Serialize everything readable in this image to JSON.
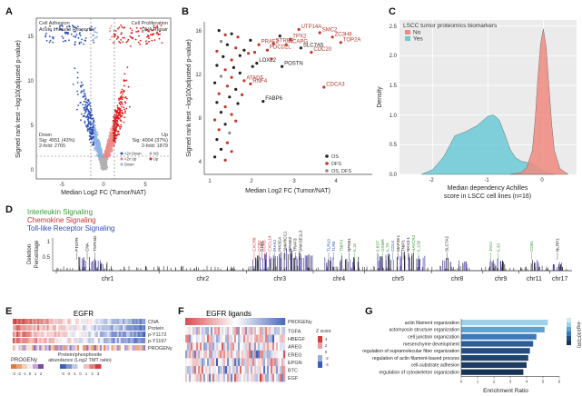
{
  "panels": {
    "a": "A",
    "b": "B",
    "c": "C",
    "d": "D",
    "e": "E",
    "f": "F",
    "g": "G"
  },
  "chart_data": [
    {
      "id": "A",
      "type": "scatter",
      "xlabel": "Median Log2 FC (Tumor/NAT)",
      "ylabel": "Signed rank test −log10(adjusted p-value)",
      "xlim": [
        -7,
        7
      ],
      "ylim": [
        -1,
        17
      ],
      "xticks": [
        "-5",
        "0",
        "5"
      ],
      "yticks": [
        "0",
        "5",
        "10",
        "15"
      ],
      "corner_left": [
        "Cell Adhesion",
        "Acute Immune Response"
      ],
      "corner_right": [
        "Cell Proliferation",
        "DNA Repair"
      ],
      "stats_down": [
        "Down",
        "Sig: 4551 (43%)",
        "2-fold: 2765"
      ],
      "stats_up": [
        "Up",
        "Sig: 4004 (37%)",
        "2-fold: 1879"
      ],
      "legend": [
        {
          "label": ">2x Down",
          "color": "#2b4fb8"
        },
        {
          "label": "<2x Up",
          "color": "#e87a7a"
        },
        {
          "label": "Down",
          "color": "#8fb3e3"
        },
        {
          "label": "NS",
          "color": "#aaaaaa"
        },
        {
          "label": "Up",
          "color": "#e02020"
        }
      ],
      "colors": {
        "down2x": "#2b4fb8",
        "down": "#8fb3e3",
        "up": "#f08a8a",
        "up2x": "#e01a1a",
        "ns": "#b0b0b0"
      }
    },
    {
      "id": "B",
      "type": "scatter",
      "xlabel": "Median Log2 FC (Tumor/NAT)",
      "ylabel": "Signed rank test −log10(adjusted p-value)",
      "xlim": [
        0.8,
        4.8
      ],
      "ylim": [
        3,
        17
      ],
      "xticks": [
        "1",
        "2",
        "3",
        "4"
      ],
      "yticks": [
        "4",
        "8",
        "12",
        "16"
      ],
      "legend": [
        {
          "label": "OS",
          "color": "#222222"
        },
        {
          "label": "DFS",
          "color": "#c0392b"
        },
        {
          "label": "OS, DFS",
          "color": "#888888"
        }
      ],
      "points": [
        {
          "x": 3.05,
          "y": 16.3,
          "label": "UTP14A",
          "group": "DFS"
        },
        {
          "x": 3.55,
          "y": 16.0,
          "label": "SMC2",
          "group": "DFS"
        },
        {
          "x": 3.85,
          "y": 15.6,
          "label": "ZC3H8",
          "group": "DFS"
        },
        {
          "x": 4.05,
          "y": 15.1,
          "label": "TOP2A",
          "group": "DFS"
        },
        {
          "x": 2.85,
          "y": 15.4,
          "label": "TPX2",
          "group": "DFS"
        },
        {
          "x": 2.75,
          "y": 14.9,
          "label": "NCAPG",
          "group": "DFS"
        },
        {
          "x": 3.1,
          "y": 14.6,
          "label": "SLC7A5",
          "group": "OS"
        },
        {
          "x": 2.45,
          "y": 15.0,
          "label": "STRBP",
          "group": "DFS"
        },
        {
          "x": 2.1,
          "y": 14.9,
          "label": "PRAF2",
          "group": "DFS"
        },
        {
          "x": 2.3,
          "y": 14.4,
          "label": "PDCD2L",
          "group": "DFS"
        },
        {
          "x": 3.35,
          "y": 14.2,
          "label": "CDC20",
          "group": "DFS"
        },
        {
          "x": 2.05,
          "y": 13.2,
          "label": "LOXL2",
          "group": "OS"
        },
        {
          "x": 2.65,
          "y": 12.9,
          "label": "POSTN",
          "group": "OS"
        },
        {
          "x": 1.75,
          "y": 11.6,
          "label": "ATAD5",
          "group": "DFS"
        },
        {
          "x": 1.9,
          "y": 11.3,
          "label": "RNF4",
          "group": "DFS"
        },
        {
          "x": 3.65,
          "y": 11.0,
          "label": "CDCA3",
          "group": "DFS"
        },
        {
          "x": 2.2,
          "y": 9.7,
          "label": "FABP6",
          "group": "OS"
        },
        {
          "x": 1.15,
          "y": 16.2,
          "label": "",
          "group": "OS"
        },
        {
          "x": 1.3,
          "y": 15.8,
          "label": "",
          "group": "DFS"
        },
        {
          "x": 1.45,
          "y": 15.9,
          "label": "",
          "group": "OS"
        },
        {
          "x": 1.6,
          "y": 15.6,
          "label": "",
          "group": "DFS"
        },
        {
          "x": 1.2,
          "y": 15.2,
          "label": "",
          "group": "OSDFS"
        },
        {
          "x": 1.35,
          "y": 14.9,
          "label": "",
          "group": "OS"
        },
        {
          "x": 1.55,
          "y": 14.6,
          "label": "",
          "group": "DFS"
        },
        {
          "x": 1.75,
          "y": 14.4,
          "label": "",
          "group": "OS"
        },
        {
          "x": 1.1,
          "y": 14.3,
          "label": "",
          "group": "DFS"
        },
        {
          "x": 1.25,
          "y": 13.8,
          "label": "",
          "group": "OS"
        },
        {
          "x": 1.45,
          "y": 13.5,
          "label": "",
          "group": "DFS"
        },
        {
          "x": 1.65,
          "y": 13.9,
          "label": "",
          "group": "OS"
        },
        {
          "x": 1.85,
          "y": 14.1,
          "label": "",
          "group": "DFS"
        },
        {
          "x": 1.1,
          "y": 13.0,
          "label": "",
          "group": "OS"
        },
        {
          "x": 1.3,
          "y": 12.6,
          "label": "",
          "group": "DFS"
        },
        {
          "x": 1.5,
          "y": 12.8,
          "label": "",
          "group": "OS"
        },
        {
          "x": 1.2,
          "y": 12.0,
          "label": "",
          "group": "OSDFS"
        },
        {
          "x": 1.45,
          "y": 11.9,
          "label": "",
          "group": "DFS"
        },
        {
          "x": 1.65,
          "y": 12.3,
          "label": "",
          "group": "OS"
        },
        {
          "x": 1.05,
          "y": 11.4,
          "label": "",
          "group": "OS"
        },
        {
          "x": 1.35,
          "y": 11.1,
          "label": "",
          "group": "DFS"
        },
        {
          "x": 1.55,
          "y": 10.8,
          "label": "",
          "group": "OS"
        },
        {
          "x": 1.15,
          "y": 10.4,
          "label": "",
          "group": "DFS"
        },
        {
          "x": 1.4,
          "y": 10.1,
          "label": "",
          "group": "OS"
        },
        {
          "x": 1.7,
          "y": 10.3,
          "label": "",
          "group": "DFS"
        },
        {
          "x": 1.1,
          "y": 9.6,
          "label": "",
          "group": "OS"
        },
        {
          "x": 1.3,
          "y": 9.2,
          "label": "",
          "group": "DFS"
        },
        {
          "x": 1.6,
          "y": 9.5,
          "label": "",
          "group": "OS"
        },
        {
          "x": 1.2,
          "y": 8.7,
          "label": "",
          "group": "OS"
        },
        {
          "x": 1.45,
          "y": 8.5,
          "label": "",
          "group": "DFS"
        },
        {
          "x": 1.05,
          "y": 8.0,
          "label": "",
          "group": "DFS"
        },
        {
          "x": 1.3,
          "y": 7.6,
          "label": "",
          "group": "OS"
        },
        {
          "x": 1.55,
          "y": 7.9,
          "label": "",
          "group": "DFS"
        },
        {
          "x": 1.15,
          "y": 7.1,
          "label": "",
          "group": "DFS"
        },
        {
          "x": 1.4,
          "y": 6.8,
          "label": "",
          "group": "OSDFS"
        },
        {
          "x": 1.1,
          "y": 6.2,
          "label": "",
          "group": "OS"
        },
        {
          "x": 1.35,
          "y": 5.9,
          "label": "",
          "group": "DFS"
        },
        {
          "x": 1.2,
          "y": 5.3,
          "label": "",
          "group": "OS"
        },
        {
          "x": 1.45,
          "y": 5.1,
          "label": "",
          "group": "DFS"
        },
        {
          "x": 1.05,
          "y": 4.6,
          "label": "",
          "group": "OS"
        },
        {
          "x": 1.3,
          "y": 4.3,
          "label": "",
          "group": "DFS"
        },
        {
          "x": 1.9,
          "y": 15.3,
          "label": "",
          "group": "OS"
        },
        {
          "x": 2.0,
          "y": 14.2,
          "label": "",
          "group": "DFS"
        },
        {
          "x": 1.95,
          "y": 12.9,
          "label": "",
          "group": "OS"
        },
        {
          "x": 2.4,
          "y": 13.6,
          "label": "",
          "group": "DFS"
        },
        {
          "x": 2.6,
          "y": 15.7,
          "label": "",
          "group": "OS"
        }
      ]
    },
    {
      "id": "C",
      "type": "area",
      "title": "LSCC tumor proteomics biomarkers",
      "xlabel": "Median dependency Achilles score in LSCC cell lines (n=16)",
      "ylabel": "Density",
      "xlim": [
        -2.6,
        0.6
      ],
      "ylim": [
        0,
        2.6
      ],
      "xticks": [
        "-2",
        "-1",
        "0"
      ],
      "yticks": [
        "0.0",
        "0.5",
        "1.0",
        "1.5",
        "2.0",
        "2.5"
      ],
      "series": [
        {
          "name": "No",
          "color": "#f08a80",
          "x": [
            -0.6,
            -0.4,
            -0.3,
            -0.2,
            -0.15,
            -0.1,
            -0.05,
            0.0,
            0.05,
            0.1,
            0.15,
            0.2,
            0.3,
            0.45
          ],
          "y": [
            0.0,
            0.03,
            0.12,
            0.4,
            0.9,
            1.6,
            2.2,
            2.45,
            2.15,
            1.5,
            0.85,
            0.4,
            0.1,
            0.0
          ]
        },
        {
          "name": "Yes",
          "color": "#6ccad8",
          "x": [
            -2.2,
            -2.0,
            -1.8,
            -1.6,
            -1.4,
            -1.2,
            -1.0,
            -0.9,
            -0.8,
            -0.7,
            -0.6,
            -0.5,
            -0.4,
            -0.3,
            -0.2,
            -0.1,
            0.0,
            0.1,
            0.2
          ],
          "y": [
            0.0,
            0.08,
            0.3,
            0.65,
            0.72,
            0.82,
            0.98,
            1.0,
            0.92,
            0.68,
            0.42,
            0.28,
            0.22,
            0.2,
            0.18,
            0.12,
            0.06,
            0.02,
            0.0
          ]
        }
      ]
    },
    {
      "id": "D",
      "type": "bar",
      "ylabel": "Deletion Percentage",
      "yticks": [
        "0.5",
        "1"
      ],
      "legend": [
        {
          "label": "Interleukin Signaling",
          "color": "#3a9a3a"
        },
        {
          "label": "Chemokine Signaling",
          "color": "#d03030"
        },
        {
          "label": "Toll-like Receptor Signaling",
          "color": "#2e4fc0"
        }
      ],
      "chromosomes": [
        {
          "name": "chr1",
          "start": 0.0,
          "end": 0.2
        },
        {
          "name": "chr2",
          "start": 0.2,
          "end": 0.37
        },
        {
          "name": "chr3",
          "start": 0.37,
          "end": 0.5
        },
        {
          "name": "chr4",
          "start": 0.5,
          "end": 0.6
        },
        {
          "name": "chr5",
          "start": 0.6,
          "end": 0.73
        },
        {
          "name": "chr8",
          "start": 0.73,
          "end": 0.83
        },
        {
          "name": "chr9",
          "start": 0.83,
          "end": 0.9
        },
        {
          "name": "chr11",
          "start": 0.9,
          "end": 0.96
        },
        {
          "name": "chr17",
          "start": 0.96,
          "end": 1.0
        }
      ],
      "gene_labels": [
        {
          "pos": 0.04,
          "text": "PTGFR",
          "color": "#222222"
        },
        {
          "pos": 0.06,
          "text": "CNA",
          "color": "#222222"
        },
        {
          "pos": 0.075,
          "text": "TSPAN2",
          "color": "#222222"
        },
        {
          "pos": 0.385,
          "text": "CXCR6",
          "color": "#d03030"
        },
        {
          "pos": 0.395,
          "text": "CCR2",
          "color": "#d03030"
        },
        {
          "pos": 0.405,
          "text": "CCR5",
          "color": "#d03030"
        },
        {
          "pos": 0.415,
          "text": "CXCL14",
          "color": "#d03030"
        },
        {
          "pos": 0.425,
          "text": "IRAK2",
          "color": "#2e4fc0"
        },
        {
          "pos": 0.435,
          "text": "PIK3CA",
          "color": "#222222"
        },
        {
          "pos": 0.445,
          "text": "SMARCC1",
          "color": "#222222"
        },
        {
          "pos": 0.455,
          "text": "NFKBIZ",
          "color": "#222222"
        },
        {
          "pos": 0.465,
          "text": "TRAF3",
          "color": "#222222"
        },
        {
          "pos": 0.475,
          "text": "DNASE1L3",
          "color": "#222222"
        },
        {
          "pos": 0.4,
          "text": "GHRL",
          "color": "#222222"
        },
        {
          "pos": 0.53,
          "text": "TLR10",
          "color": "#2e4fc0"
        },
        {
          "pos": 0.54,
          "text": "TLR6",
          "color": "#2e4fc0"
        },
        {
          "pos": 0.555,
          "text": "TNIP3",
          "color": "#3a9a3a"
        },
        {
          "pos": 0.57,
          "text": "NFKB1",
          "color": "#222222"
        },
        {
          "pos": 0.58,
          "text": "IL15",
          "color": "#3a9a3a"
        },
        {
          "pos": 0.625,
          "text": "IL6ST",
          "color": "#3a9a3a"
        },
        {
          "pos": 0.635,
          "text": "OSMR",
          "color": "#3a9a3a"
        },
        {
          "pos": 0.645,
          "text": "IL7R",
          "color": "#3a9a3a"
        },
        {
          "pos": 0.655,
          "text": "CD14",
          "color": "#2e4fc0"
        },
        {
          "pos": 0.665,
          "text": "MAP3K1",
          "color": "#222222"
        },
        {
          "pos": 0.675,
          "text": "TNIP1",
          "color": "#222222"
        },
        {
          "pos": 0.685,
          "text": "NKX3-1",
          "color": "#222222"
        },
        {
          "pos": 0.695,
          "text": "HAVCR2",
          "color": "#3a9a3a"
        },
        {
          "pos": 0.705,
          "text": "IL12B",
          "color": "#3a9a3a"
        },
        {
          "pos": 0.76,
          "text": "SLC7A2",
          "color": "#222222"
        },
        {
          "pos": 0.845,
          "text": "JAK2",
          "color": "#3a9a3a"
        },
        {
          "pos": 0.86,
          "text": "IL33",
          "color": "#3a9a3a"
        },
        {
          "pos": 0.925,
          "text": "CD81",
          "color": "#3a9a3a"
        },
        {
          "pos": 0.975,
          "text": "NLRP1",
          "color": "#222222"
        }
      ],
      "peaks": [
        {
          "pos": 0.05,
          "h": 0.45
        },
        {
          "pos": 0.07,
          "h": 0.5
        },
        {
          "pos": 0.09,
          "h": 0.35
        },
        {
          "pos": 0.39,
          "h": 0.5
        },
        {
          "pos": 0.41,
          "h": 0.6
        },
        {
          "pos": 0.43,
          "h": 0.7
        },
        {
          "pos": 0.45,
          "h": 0.75
        },
        {
          "pos": 0.47,
          "h": 0.6
        },
        {
          "pos": 0.49,
          "h": 0.55
        },
        {
          "pos": 0.53,
          "h": 0.45
        },
        {
          "pos": 0.56,
          "h": 0.5
        },
        {
          "pos": 0.58,
          "h": 0.45
        },
        {
          "pos": 0.63,
          "h": 0.55
        },
        {
          "pos": 0.65,
          "h": 0.6
        },
        {
          "pos": 0.67,
          "h": 0.65
        },
        {
          "pos": 0.69,
          "h": 0.6
        },
        {
          "pos": 0.71,
          "h": 0.5
        },
        {
          "pos": 0.76,
          "h": 0.45
        },
        {
          "pos": 0.79,
          "h": 0.35
        },
        {
          "pos": 0.85,
          "h": 0.4
        },
        {
          "pos": 0.87,
          "h": 0.35
        },
        {
          "pos": 0.93,
          "h": 0.35
        },
        {
          "pos": 0.975,
          "h": 0.3
        }
      ]
    },
    {
      "id": "E",
      "type": "heatmap",
      "title": "EGFR",
      "rows": [
        "CNA",
        "Protein",
        "p-Y1172",
        "p-Y1197",
        "PROGENy"
      ],
      "legend_title": "PROGENy",
      "legend_ticks": [
        "-3",
        "-2",
        "-1",
        "0",
        "1",
        "2"
      ],
      "scale_label": [
        "Protein/phosphosite",
        "abundance (Log2 TMT ratio)"
      ],
      "scale_ticks": [
        "-3",
        "-2",
        "-1",
        "0",
        "1",
        "2",
        "3"
      ]
    },
    {
      "id": "F",
      "type": "heatmap",
      "title": "EGFR ligands",
      "rows": [
        "PROGENy",
        "TGFA",
        "HBEGF",
        "AREG",
        "EREG",
        "EPGN",
        "BTC",
        "EGF"
      ],
      "legend_title": "Z score",
      "legend_ticks": [
        "4",
        "2",
        "0",
        "-2",
        "-4"
      ]
    },
    {
      "id": "G",
      "type": "bar",
      "xlabel": "Enrichment Ratio",
      "xlim": [
        0,
        6
      ],
      "xticks": [
        "0",
        "1",
        "2",
        "3",
        "4",
        "5",
        "6"
      ],
      "legend_title": "-log10(FDR)",
      "categories": [
        "actin filament organization",
        "actomyosin structure organization",
        "cell junction organization",
        "mesenchyme development",
        "regulation of supramolecular fiber organization",
        "regulation of actin filament-based process",
        "cell-substrate adhesion",
        "regulation of cytoskeleton organization"
      ],
      "values": [
        5.3,
        5.1,
        4.6,
        4.4,
        4.2,
        4.1,
        4.0,
        3.8
      ]
    }
  ]
}
